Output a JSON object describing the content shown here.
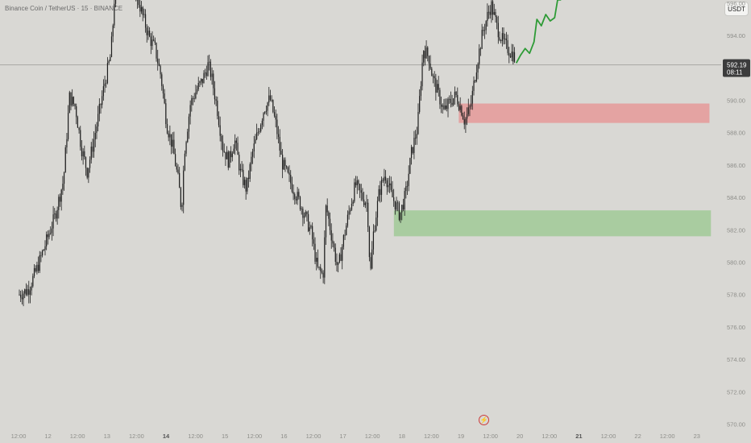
{
  "header": {
    "title": "Binance Coin / TetherUS · 15 · BINANCE",
    "currency_button": "USDT"
  },
  "current_price": {
    "price": "592.19",
    "countdown": "08:11"
  },
  "icons": {
    "scale_icon": "lightning-icon"
  },
  "colors": {
    "background": "#d9d8d4",
    "candle": "#1e1e1e",
    "projection": "#2e9b36",
    "supply_zone": "#e4a3a2",
    "demand_zone": "#a9cca0",
    "price_label_bg": "#3c3c3c"
  },
  "chart_data": {
    "type": "candlestick",
    "title": "Binance Coin / TetherUS · 15 · BINANCE",
    "y_axis": {
      "ylim": [
        568.8,
        605.2
      ],
      "ticks": [
        570,
        572,
        574,
        576,
        578,
        580,
        582,
        584,
        586,
        588,
        590,
        592,
        594,
        596,
        598,
        600,
        602,
        604
      ],
      "labels": [
        "570.00",
        "572.00",
        "574.00",
        "576.00",
        "578.00",
        "580.00",
        "582.00",
        "584.00",
        "586.00",
        "588.00",
        "590.00",
        "592.00",
        "594.00",
        "596.00",
        "598.00",
        "600.00",
        "602.00",
        "604.00"
      ]
    },
    "x_axis": {
      "ticks": [
        "12:00",
        "12",
        "12:00",
        "13",
        "12:00",
        "14",
        "12:00",
        "15",
        "12:00",
        "16",
        "12:00",
        "17",
        "12:00",
        "18",
        "12:00",
        "19",
        "12:00",
        "20",
        "12:00",
        "21",
        "12:00",
        "22",
        "12:00",
        "23"
      ],
      "bold": [
        false,
        false,
        false,
        false,
        false,
        true,
        false,
        false,
        false,
        false,
        false,
        false,
        false,
        false,
        false,
        false,
        false,
        false,
        false,
        true,
        false,
        false,
        false,
        false
      ]
    },
    "price_path": [
      [
        0,
        578
      ],
      [
        0.3,
        578.3
      ],
      [
        0.6,
        579.6
      ],
      [
        0.9,
        581.2
      ],
      [
        1.2,
        582.8
      ],
      [
        1.5,
        585.1
      ],
      [
        1.7,
        590.2
      ],
      [
        1.9,
        589.6
      ],
      [
        2.1,
        587.1
      ],
      [
        2.3,
        585.6
      ],
      [
        2.5,
        587.3
      ],
      [
        2.7,
        589.2
      ],
      [
        2.9,
        591.1
      ],
      [
        3.1,
        592.8
      ],
      [
        3.2,
        595.4
      ],
      [
        3.3,
        599.4
      ],
      [
        3.5,
        597.6
      ],
      [
        3.6,
        598.5
      ],
      [
        3.8,
        597.1
      ],
      [
        4.0,
        596.4
      ],
      [
        4.2,
        595.1
      ],
      [
        4.4,
        593.9
      ],
      [
        4.6,
        593.2
      ],
      [
        4.8,
        591.5
      ],
      [
        5.0,
        588.5
      ],
      [
        5.2,
        587.1
      ],
      [
        5.4,
        584.9
      ],
      [
        5.5,
        583.2
      ],
      [
        5.6,
        586.9
      ],
      [
        5.8,
        589.8
      ],
      [
        6.0,
        590.6
      ],
      [
        6.2,
        591.2
      ],
      [
        6.4,
        592.2
      ],
      [
        6.5,
        591.6
      ],
      [
        6.7,
        589.6
      ],
      [
        6.9,
        587.1
      ],
      [
        7.1,
        586.2
      ],
      [
        7.3,
        587.6
      ],
      [
        7.5,
        585.5
      ],
      [
        7.7,
        584.5
      ],
      [
        7.9,
        586.7
      ],
      [
        8.1,
        588.1
      ],
      [
        8.3,
        589.5
      ],
      [
        8.5,
        590.1
      ],
      [
        8.7,
        588.5
      ],
      [
        8.9,
        586.2
      ],
      [
        9.1,
        585.3
      ],
      [
        9.3,
        584.5
      ],
      [
        9.5,
        583.7
      ],
      [
        9.7,
        582.8
      ],
      [
        9.9,
        581.8
      ],
      [
        10.1,
        579.6
      ],
      [
        10.3,
        579.2
      ],
      [
        10.4,
        583.5
      ],
      [
        10.6,
        581.5
      ],
      [
        10.8,
        579.5
      ],
      [
        11.0,
        581.5
      ],
      [
        11.2,
        583.3
      ],
      [
        11.4,
        584.8
      ],
      [
        11.6,
        584.1
      ],
      [
        11.8,
        583.6
      ],
      [
        11.9,
        579.1
      ],
      [
        12.0,
        581.7
      ],
      [
        12.2,
        584.3
      ],
      [
        12.4,
        585.5
      ],
      [
        12.6,
        584.2
      ],
      [
        12.8,
        583.4
      ],
      [
        12.9,
        582.9
      ],
      [
        13.1,
        584.2
      ],
      [
        13.3,
        586.8
      ],
      [
        13.5,
        588.3
      ],
      [
        13.6,
        590.8
      ],
      [
        13.7,
        593.2
      ],
      [
        13.9,
        592.6
      ],
      [
        14.0,
        591.5
      ],
      [
        14.2,
        590.4
      ],
      [
        14.4,
        589.3
      ],
      [
        14.6,
        589.9
      ],
      [
        14.8,
        590.3
      ],
      [
        15.0,
        589.4
      ],
      [
        15.1,
        588.7
      ],
      [
        15.3,
        589.6
      ],
      [
        15.5,
        592.1
      ],
      [
        15.7,
        594.1
      ],
      [
        15.9,
        595.4
      ],
      [
        16.0,
        595.9
      ],
      [
        16.2,
        594.5
      ],
      [
        16.4,
        593.6
      ],
      [
        16.6,
        593.1
      ],
      [
        16.8,
        592.7
      ]
    ],
    "projection_path": [
      [
        16.85,
        592.3
      ],
      [
        17.0,
        592.8
      ],
      [
        17.15,
        593.2
      ],
      [
        17.3,
        592.9
      ],
      [
        17.45,
        593.6
      ],
      [
        17.55,
        595.0
      ],
      [
        17.7,
        594.6
      ],
      [
        17.85,
        595.3
      ],
      [
        18.0,
        594.9
      ],
      [
        18.15,
        595.1
      ],
      [
        18.25,
        596.2
      ],
      [
        18.35,
        596.2
      ],
      [
        18.42,
        597.6
      ],
      [
        18.5,
        601.0
      ]
    ],
    "zones": [
      {
        "name": "supply",
        "x_start": 14.9,
        "x_end": 23.4,
        "y_low": 588.6,
        "y_high": 589.8
      },
      {
        "name": "demand",
        "x_start": 12.7,
        "x_end": 23.45,
        "y_low": 581.6,
        "y_high": 583.2
      }
    ],
    "last_price": 592.19
  }
}
